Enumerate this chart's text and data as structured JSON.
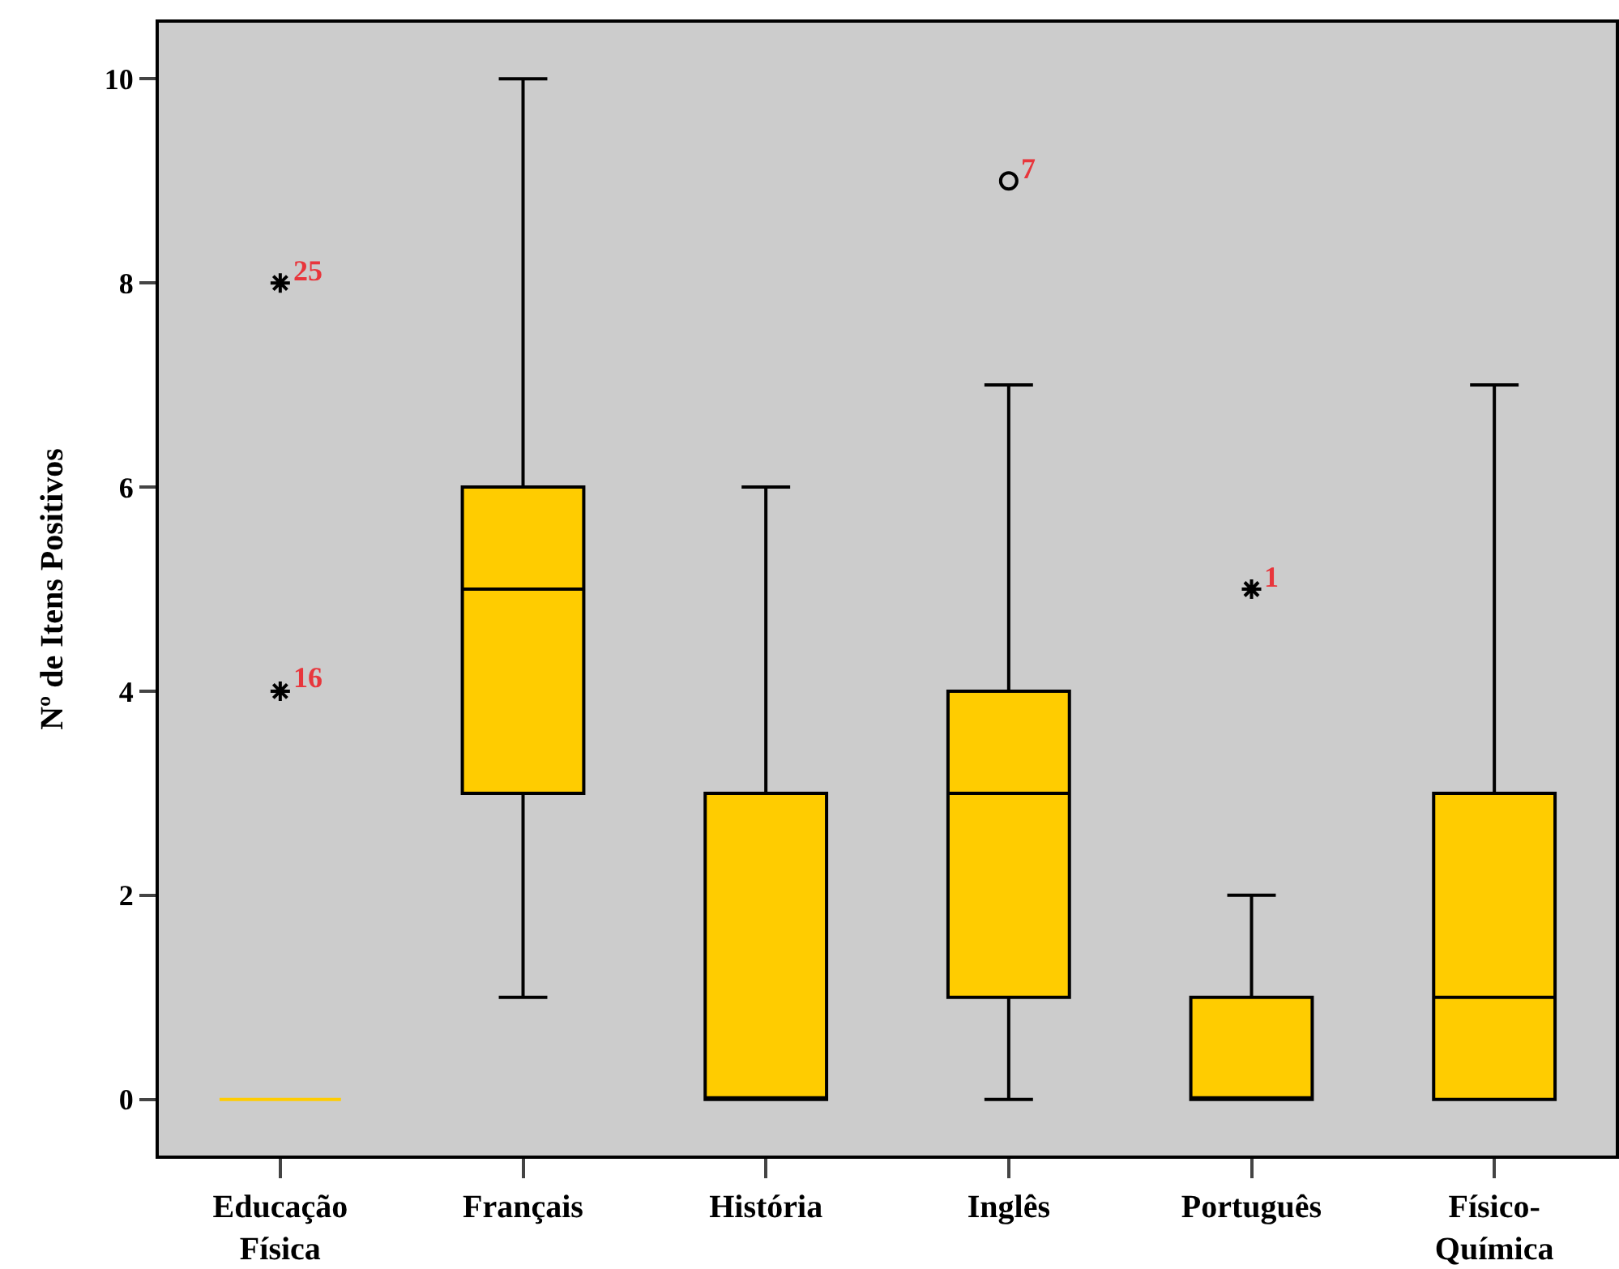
{
  "chart_data": {
    "type": "box",
    "ylabel": "Nº de Itens Positivos",
    "categories": [
      "Educação Física",
      "Français",
      "História",
      "Inglês",
      "Português",
      "Físico-Química"
    ],
    "boxes": [
      {
        "low": 0,
        "q1": 0,
        "median": 0,
        "q3": 0,
        "high": 0
      },
      {
        "low": 1,
        "q1": 3,
        "median": 5,
        "q3": 6,
        "high": 10
      },
      {
        "low": 0,
        "q1": 0,
        "median": 0,
        "q3": 3,
        "high": 6
      },
      {
        "low": 0,
        "q1": 1,
        "median": 3,
        "q3": 4,
        "high": 7
      },
      {
        "low": 0,
        "q1": 0,
        "median": 0,
        "q3": 1,
        "high": 2
      },
      {
        "low": 0,
        "q1": 0,
        "median": 1,
        "q3": 3,
        "high": 7
      }
    ],
    "series": [
      {
        "type": "scatter",
        "marker": "cross",
        "color": "#000000",
        "x": [
          "Educação Física",
          "Educação Física",
          "Português"
        ],
        "values": [
          4,
          8,
          5
        ]
      },
      {
        "type": "scatter",
        "marker": "circle",
        "color": "#000000",
        "x": [
          "Inglês"
        ],
        "values": [
          9
        ]
      }
    ],
    "color": "#ffcc00",
    "ylim": [
      -0.55,
      10.55
    ],
    "yticks": [
      0,
      2,
      4,
      6,
      8,
      10
    ],
    "annotations": [
      {
        "text": "16",
        "x": "Educação Física",
        "y": 4
      },
      {
        "text": "25",
        "x": "Educação Física",
        "y": 8
      },
      {
        "text": "7",
        "x": "Inglês",
        "y": 9
      },
      {
        "text": "1",
        "x": "Português",
        "y": 5
      }
    ],
    "grid": false,
    "legend": false
  }
}
